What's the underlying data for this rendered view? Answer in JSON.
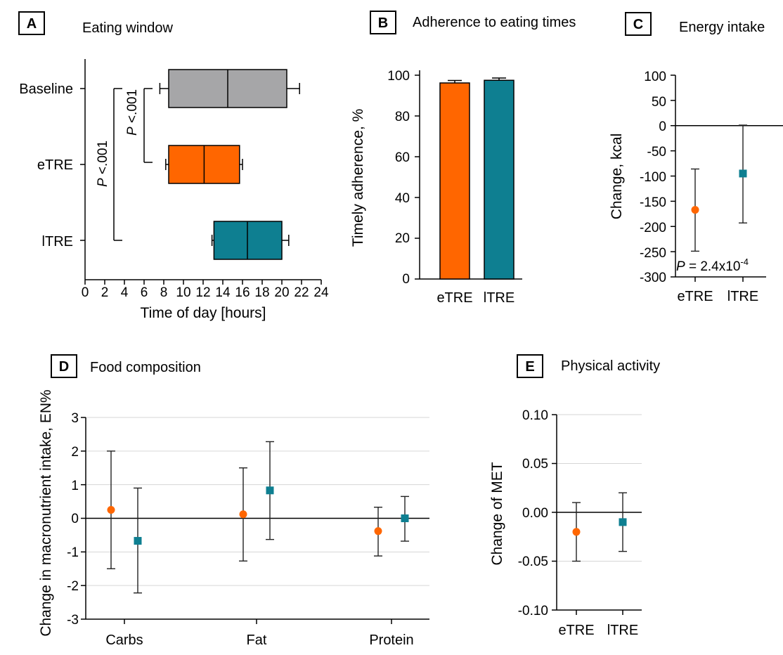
{
  "colors": {
    "etre": "#FF6600",
    "ltre": "#0E7F91",
    "baseline": "#A6A6A8",
    "grid": "#D6D6D6",
    "axis": "#000000"
  },
  "panels": {
    "A": {
      "letter": "A",
      "title": "Eating window"
    },
    "B": {
      "letter": "B",
      "title": "Adherence to eating times"
    },
    "C": {
      "letter": "C",
      "title": "Energy intake"
    },
    "D": {
      "letter": "D",
      "title": "Food composition"
    },
    "E": {
      "letter": "E",
      "title": "Physical activity"
    }
  },
  "chart_data": [
    {
      "panel": "A",
      "type": "box",
      "title": "Eating window",
      "xlabel": "Time of day [hours]",
      "xlim": [
        0,
        24
      ],
      "xticks": [
        "0",
        "2",
        "4",
        "6",
        "8",
        "10",
        "12",
        "14",
        "16",
        "18",
        "20",
        "22",
        "24"
      ],
      "categories": [
        "Baseline",
        "eTRE",
        "lTRE"
      ],
      "boxes": [
        {
          "name": "Baseline",
          "whisker_low": 7.6,
          "q1": 8.5,
          "median": 14.5,
          "q3": 20.5,
          "whisker_high": 21.8,
          "color": "#A6A6A8"
        },
        {
          "name": "eTRE",
          "whisker_low": 8.2,
          "q1": 8.5,
          "median": 12.1,
          "q3": 15.7,
          "whisker_high": 16.0,
          "color": "#FF6600"
        },
        {
          "name": "lTRE",
          "whisker_low": 12.9,
          "q1": 13.1,
          "median": 16.5,
          "q3": 20.0,
          "whisker_high": 20.7,
          "color": "#0E7F91"
        }
      ],
      "annotations": [
        {
          "text_italic": "P",
          "text": " <.001",
          "from": "Baseline",
          "to": "eTRE"
        },
        {
          "text_italic": "P",
          "text": " <.001",
          "from": "Baseline",
          "to": "lTRE"
        }
      ]
    },
    {
      "panel": "B",
      "type": "bar",
      "title": "Adherence to eating times",
      "ylabel": "Timely adherence, %",
      "ylim": [
        0,
        100
      ],
      "yticks": [
        "0",
        "20",
        "40",
        "60",
        "80",
        "100"
      ],
      "categories": [
        "eTRE",
        "lTRE"
      ],
      "values": [
        96.2,
        97.5
      ],
      "errors": [
        1.2,
        1.1
      ],
      "colors": [
        "#FF6600",
        "#0E7F91"
      ]
    },
    {
      "panel": "C",
      "type": "scatter",
      "title": "Energy intake",
      "ylabel": "Change, kcal",
      "ylim": [
        -300,
        100
      ],
      "yticks": [
        "100",
        "50",
        "0",
        "-50",
        "-100",
        "-150",
        "-200",
        "-250",
        "-300"
      ],
      "categories": [
        "eTRE",
        "lTRE"
      ],
      "points": [
        {
          "name": "eTRE",
          "value": -167,
          "low": -249,
          "high": -86,
          "marker": "circle",
          "color": "#FF6600"
        },
        {
          "name": "lTRE",
          "value": -95,
          "low": -193,
          "high": 1,
          "marker": "square",
          "color": "#0E7F91"
        }
      ],
      "annotation": {
        "italic": "P",
        "text": " = 2.4x10",
        "sup": "-4"
      }
    },
    {
      "panel": "D",
      "type": "scatter",
      "title": "Food composition",
      "ylabel": "Change in macronutrient intake, EN%",
      "ylim": [
        -3,
        3
      ],
      "yticks": [
        "3",
        "2",
        "1",
        "0",
        "-1",
        "-2",
        "-3"
      ],
      "categories": [
        "Carbs",
        "Fat",
        "Protein"
      ],
      "series": [
        {
          "name": "eTRE",
          "marker": "circle",
          "color": "#FF6600",
          "values": [
            0.25,
            0.12,
            -0.38
          ],
          "low": [
            -1.5,
            -1.27,
            -1.12
          ],
          "high": [
            2.0,
            1.5,
            0.33
          ]
        },
        {
          "name": "lTRE",
          "marker": "square",
          "color": "#0E7F91",
          "values": [
            -0.67,
            0.83,
            0.0
          ],
          "low": [
            -2.22,
            -0.63,
            -0.68
          ],
          "high": [
            0.9,
            2.28,
            0.65
          ]
        }
      ],
      "grid": true
    },
    {
      "panel": "E",
      "type": "scatter",
      "title": "Physical activity",
      "ylabel": "Change of MET",
      "ylim": [
        -0.1,
        0.1
      ],
      "yticks": [
        "0.10",
        "0.05",
        "0.00",
        "-0.05",
        "-0.10"
      ],
      "categories": [
        "eTRE",
        "lTRE"
      ],
      "points": [
        {
          "name": "eTRE",
          "value": -0.02,
          "low": -0.05,
          "high": 0.01,
          "marker": "circle",
          "color": "#FF6600"
        },
        {
          "name": "lTRE",
          "value": -0.01,
          "low": -0.04,
          "high": 0.02,
          "marker": "square",
          "color": "#0E7F91"
        }
      ],
      "grid": true
    }
  ]
}
